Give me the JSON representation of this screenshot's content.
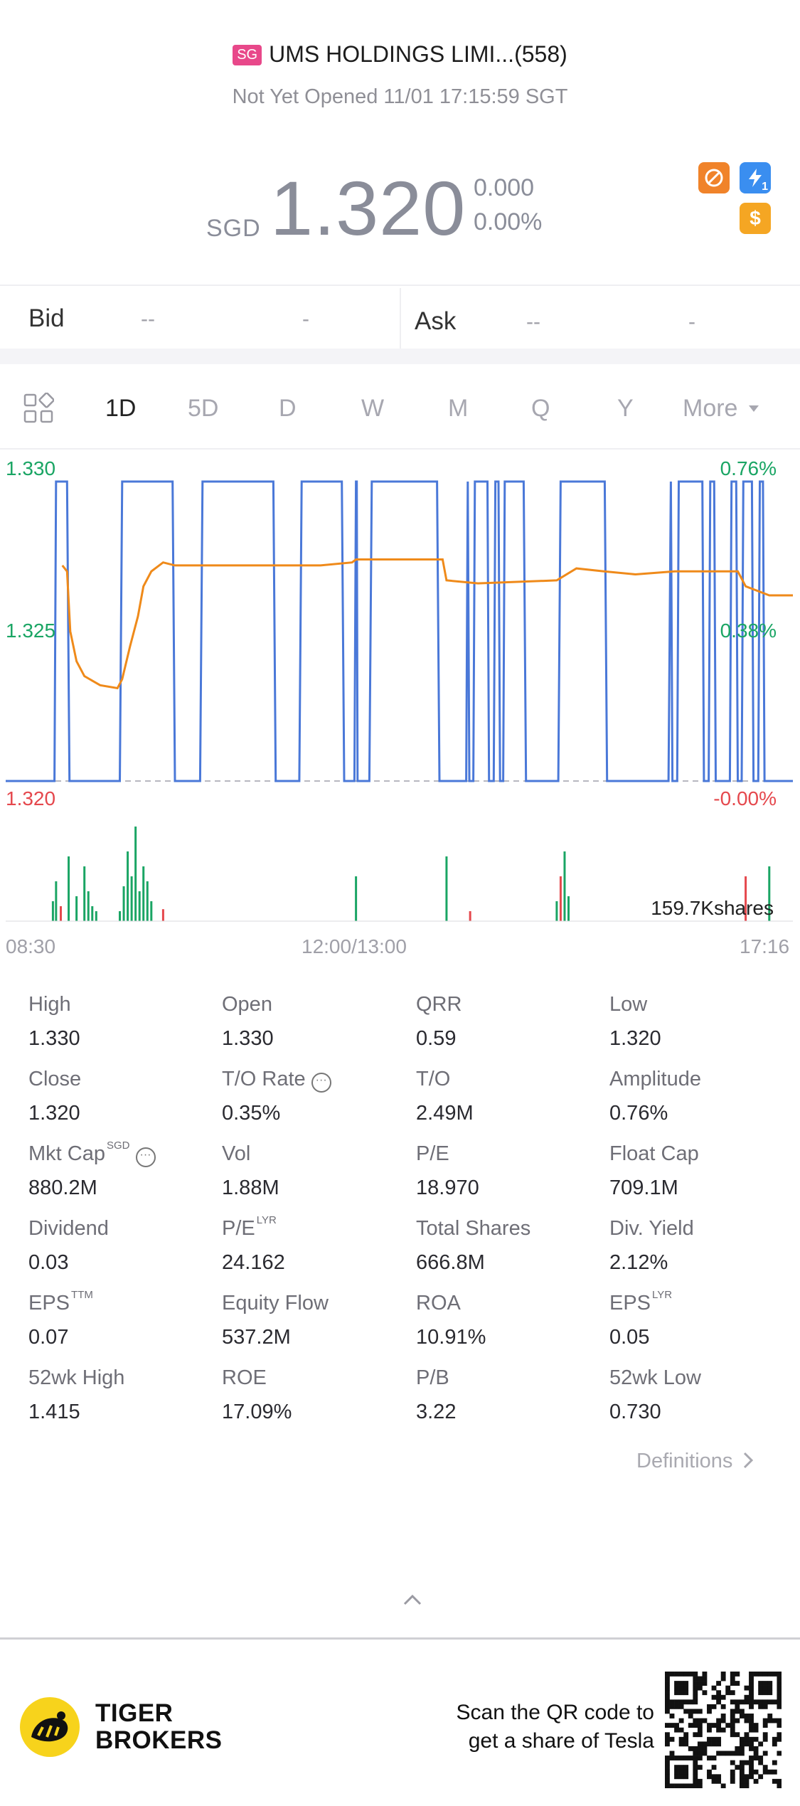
{
  "header": {
    "market_badge": "SG",
    "title": "UMS HOLDINGS LIMI...(558)",
    "status": "Not Yet Opened 11/01 17:15:59 SGT"
  },
  "price": {
    "currency": "SGD",
    "last": "1.320",
    "change": "0.000",
    "change_pct": "0.00%"
  },
  "badges": [
    {
      "icon": "no-entry-icon",
      "color": "#f0832a"
    },
    {
      "icon": "lightning-icon",
      "color": "#3a8ef0",
      "label": "1"
    },
    {
      "icon": "dollar-icon",
      "color": "#f5a623",
      "label": "$"
    }
  ],
  "bid": {
    "label": "Bid",
    "price": "--",
    "size": "-"
  },
  "ask": {
    "label": "Ask",
    "price": "--",
    "size": "-"
  },
  "tabs": [
    "1D",
    "5D",
    "D",
    "W",
    "M",
    "Q",
    "Y",
    "More"
  ],
  "active_tab": "1D",
  "chart_data": {
    "type": "line",
    "y_left_labels": {
      "top": "1.330",
      "mid": "1.325",
      "bottom": "1.320"
    },
    "y_right_labels": {
      "top": "0.76%",
      "mid": "0.38%",
      "bottom": "-0.00%"
    },
    "ylim": [
      1.32,
      1.33
    ],
    "x_labels": [
      "08:30",
      "12:00/13:00",
      "17:16"
    ],
    "volume_label": "159.7Kshares",
    "colors": {
      "price": "#4a78d8",
      "avg": "#ef8a1a",
      "up": "#1aa564",
      "down": "#e5484d",
      "baseline": "#b8b8c0"
    },
    "price_series": [
      [
        0,
        0
      ],
      [
        0.062,
        0
      ],
      [
        0.064,
        1
      ],
      [
        0.078,
        1
      ],
      [
        0.081,
        0
      ],
      [
        0.145,
        0
      ],
      [
        0.148,
        1
      ],
      [
        0.212,
        1
      ],
      [
        0.215,
        0
      ],
      [
        0.247,
        0
      ],
      [
        0.25,
        1
      ],
      [
        0.34,
        1
      ],
      [
        0.343,
        0
      ],
      [
        0.373,
        0
      ],
      [
        0.376,
        1
      ],
      [
        0.427,
        1
      ],
      [
        0.43,
        0
      ],
      [
        0.443,
        0
      ],
      [
        0.445,
        1
      ],
      [
        0.446,
        1
      ],
      [
        0.447,
        0
      ],
      [
        0.462,
        0
      ],
      [
        0.465,
        1
      ],
      [
        0.548,
        1
      ],
      [
        0.551,
        0
      ],
      [
        0.585,
        0
      ],
      [
        0.587,
        1
      ],
      [
        0.589,
        0
      ],
      [
        0.594,
        0
      ],
      [
        0.596,
        1
      ],
      [
        0.612,
        1
      ],
      [
        0.614,
        0
      ],
      [
        0.62,
        0
      ],
      [
        0.622,
        1
      ],
      [
        0.626,
        1
      ],
      [
        0.628,
        0
      ],
      [
        0.632,
        0
      ],
      [
        0.634,
        1
      ],
      [
        0.658,
        1
      ],
      [
        0.661,
        0
      ],
      [
        0.702,
        0
      ],
      [
        0.705,
        1
      ],
      [
        0.761,
        1
      ],
      [
        0.764,
        0
      ],
      [
        0.842,
        0
      ],
      [
        0.845,
        1
      ],
      [
        0.847,
        0
      ],
      [
        0.853,
        0
      ],
      [
        0.855,
        1
      ],
      [
        0.885,
        1
      ],
      [
        0.887,
        0
      ],
      [
        0.893,
        0
      ],
      [
        0.895,
        1
      ],
      [
        0.9,
        1
      ],
      [
        0.902,
        0
      ],
      [
        0.92,
        0
      ],
      [
        0.922,
        1
      ],
      [
        0.928,
        1
      ],
      [
        0.93,
        0
      ],
      [
        0.935,
        0
      ],
      [
        0.937,
        1
      ],
      [
        0.948,
        1
      ],
      [
        0.95,
        0
      ],
      [
        0.956,
        0
      ],
      [
        0.958,
        1
      ],
      [
        0.962,
        1
      ],
      [
        0.964,
        0
      ],
      [
        1,
        0
      ]
    ],
    "avg_series": [
      [
        0.072,
        0.72
      ],
      [
        0.078,
        0.7
      ],
      [
        0.082,
        0.5
      ],
      [
        0.09,
        0.4
      ],
      [
        0.1,
        0.35
      ],
      [
        0.12,
        0.32
      ],
      [
        0.142,
        0.31
      ],
      [
        0.148,
        0.34
      ],
      [
        0.158,
        0.45
      ],
      [
        0.168,
        0.55
      ],
      [
        0.175,
        0.65
      ],
      [
        0.185,
        0.7
      ],
      [
        0.2,
        0.73
      ],
      [
        0.215,
        0.72
      ],
      [
        0.3,
        0.72
      ],
      [
        0.4,
        0.72
      ],
      [
        0.44,
        0.73
      ],
      [
        0.445,
        0.74
      ],
      [
        0.5,
        0.74
      ],
      [
        0.555,
        0.74
      ],
      [
        0.56,
        0.67
      ],
      [
        0.6,
        0.66
      ],
      [
        0.7,
        0.67
      ],
      [
        0.725,
        0.71
      ],
      [
        0.76,
        0.7
      ],
      [
        0.8,
        0.69
      ],
      [
        0.85,
        0.7
      ],
      [
        0.93,
        0.7
      ],
      [
        0.94,
        0.65
      ],
      [
        0.97,
        0.62
      ],
      [
        1,
        0.62
      ]
    ],
    "volume_bars": [
      [
        0.06,
        0.2,
        "g"
      ],
      [
        0.064,
        0.4,
        "g"
      ],
      [
        0.07,
        0.15,
        "r"
      ],
      [
        0.08,
        0.65,
        "g"
      ],
      [
        0.09,
        0.25,
        "g"
      ],
      [
        0.1,
        0.55,
        "g"
      ],
      [
        0.105,
        0.3,
        "g"
      ],
      [
        0.11,
        0.15,
        "g"
      ],
      [
        0.115,
        0.1,
        "g"
      ],
      [
        0.145,
        0.1,
        "g"
      ],
      [
        0.15,
        0.35,
        "g"
      ],
      [
        0.155,
        0.7,
        "g"
      ],
      [
        0.16,
        0.45,
        "g"
      ],
      [
        0.165,
        0.95,
        "g"
      ],
      [
        0.17,
        0.3,
        "g"
      ],
      [
        0.175,
        0.55,
        "g"
      ],
      [
        0.18,
        0.4,
        "g"
      ],
      [
        0.185,
        0.2,
        "g"
      ],
      [
        0.2,
        0.12,
        "r"
      ],
      [
        0.445,
        0.45,
        "g"
      ],
      [
        0.56,
        0.65,
        "g"
      ],
      [
        0.59,
        0.1,
        "r"
      ],
      [
        0.7,
        0.2,
        "g"
      ],
      [
        0.705,
        0.45,
        "r"
      ],
      [
        0.71,
        0.7,
        "g"
      ],
      [
        0.715,
        0.25,
        "g"
      ],
      [
        0.94,
        0.45,
        "r"
      ],
      [
        0.97,
        0.55,
        "g"
      ]
    ]
  },
  "stats": [
    [
      {
        "label": "High",
        "value": "1.330"
      },
      {
        "label": "Open",
        "value": "1.330"
      },
      {
        "label": "QRR",
        "value": "0.59"
      },
      {
        "label": "Low",
        "value": "1.320"
      }
    ],
    [
      {
        "label": "Close",
        "value": "1.320"
      },
      {
        "label": "T/O Rate",
        "value": "0.35%",
        "info": "···"
      },
      {
        "label": "T/O",
        "value": "2.49M"
      },
      {
        "label": "Amplitude",
        "value": "0.76%"
      }
    ],
    [
      {
        "label": "Mkt Cap",
        "value": "880.2M",
        "sup": "SGD",
        "info": "···"
      },
      {
        "label": "Vol",
        "value": "1.88M"
      },
      {
        "label": "P/E",
        "value": "18.970"
      },
      {
        "label": "Float Cap",
        "value": "709.1M"
      }
    ],
    [
      {
        "label": "Dividend",
        "value": "0.03"
      },
      {
        "label": "P/E",
        "value": "24.162",
        "sup": "LYR"
      },
      {
        "label": "Total Shares",
        "value": "666.8M"
      },
      {
        "label": "Div. Yield",
        "value": "2.12%"
      }
    ],
    [
      {
        "label": "EPS",
        "value": "0.07",
        "sup": "TTM"
      },
      {
        "label": "Equity Flow",
        "value": "537.2M"
      },
      {
        "label": "ROA",
        "value": "10.91%"
      },
      {
        "label": "EPS",
        "value": "0.05",
        "sup": "LYR"
      }
    ],
    [
      {
        "label": "52wk High",
        "value": "1.415"
      },
      {
        "label": "ROE",
        "value": "17.09%"
      },
      {
        "label": "P/B",
        "value": "3.22"
      },
      {
        "label": "52wk Low",
        "value": "0.730"
      }
    ]
  ],
  "definitions_label": "Definitions",
  "footer": {
    "brand_line1": "TIGER",
    "brand_line2": "BROKERS",
    "scan_line1": "Scan the QR code to",
    "scan_line2": "get a share of Tesla"
  }
}
